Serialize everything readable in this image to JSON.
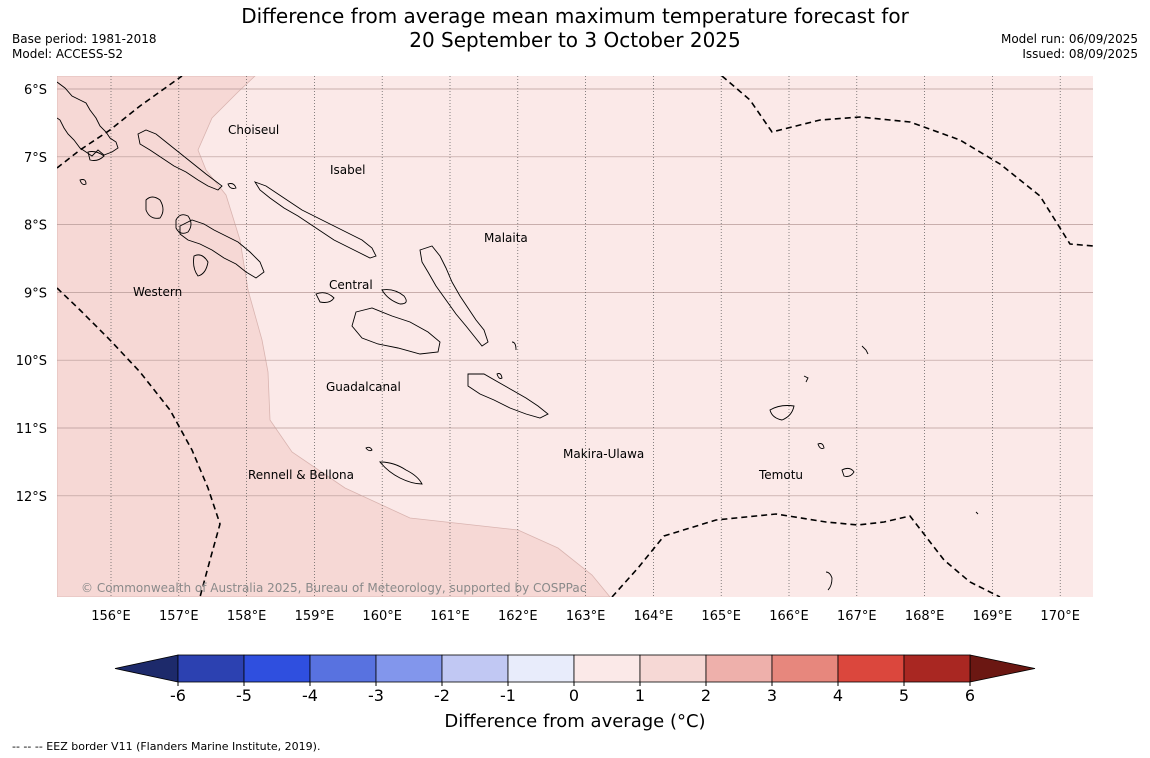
{
  "title_line1": "Difference from average mean maximum temperature forecast for",
  "title_line2": "20 September to 3 October 2025",
  "base_period": "Base period: 1981-2018",
  "model": "Model: ACCESS-S2",
  "model_run": "Model run: 06/09/2025",
  "issued": "Issued: 08/09/2025",
  "copyright": "© Commonwealth of Australia 2025, Bureau of Meteorology, supported by COSPPac",
  "footnote": "--  --  -- EEZ border V11 (Flanders Marine Institute, 2019).",
  "map": {
    "lat_labels": [
      "6°S",
      "7°S",
      "8°S",
      "9°S",
      "10°S",
      "11°S",
      "12°S"
    ],
    "lon_labels": [
      "156°E",
      "157°E",
      "158°E",
      "159°E",
      "160°E",
      "161°E",
      "162°E",
      "163°E",
      "164°E",
      "165°E",
      "166°E",
      "167°E",
      "168°E",
      "169°E",
      "170°E"
    ],
    "regions": [
      "Choiseul",
      "Isabel",
      "Malaita",
      "Western",
      "Central",
      "Guadalcanal",
      "Makira-Ulawa",
      "Rennell & Bellona",
      "Temotu"
    ],
    "anomaly_fill": {
      "range_1_2": "#f6d8d5",
      "range_0_1": "#fbe9e8"
    }
  },
  "colorbar": {
    "title": "Difference from average (°C)",
    "ticks": [
      "-6",
      "-5",
      "-4",
      "-3",
      "-2",
      "-1",
      "0",
      "1",
      "2",
      "3",
      "4",
      "5",
      "6"
    ],
    "colors": [
      "#22358a",
      "#2c41b1",
      "#2f4fdf",
      "#5872e0",
      "#8296ec",
      "#c1c8f3",
      "#e8ecfb",
      "#fbe9e8",
      "#f6d8d5",
      "#eeb0ab",
      "#e7877d",
      "#db473d",
      "#a92722",
      "#6b1712"
    ],
    "under_color": "#1d2a6b",
    "over_color": "#6b1712"
  }
}
